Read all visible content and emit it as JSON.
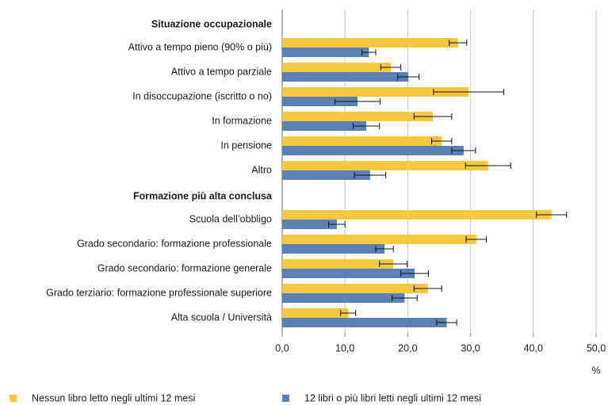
{
  "chart_data": {
    "type": "bar",
    "orientation": "horizontal",
    "categories": [
      "Situazione occupazionale",
      "Attivo a tempo pieno (90% o più)",
      "Attivo a tempo parziale",
      "In disoccupazione (iscritto o no)",
      "In formazione",
      "In pensione",
      "Altro",
      "Formazione più alta conclusa",
      "Scuola dell’obbligo",
      "Grado secondario: formazione professionale",
      "Grado secondario: formazione generale",
      "Grado terziario: formazione professionale superiore",
      "Alta scuola / Università"
    ],
    "series": [
      {
        "name": "Nessun libro letto negli ultimi 12 mesi",
        "color": "#f5c842",
        "values": [
          null,
          28.0,
          17.3,
          29.7,
          24.0,
          25.4,
          32.8,
          null,
          42.9,
          30.9,
          17.7,
          23.2,
          10.5
        ],
        "errors": [
          null,
          1.4,
          1.6,
          5.6,
          3.0,
          1.6,
          3.6,
          null,
          2.4,
          1.6,
          2.2,
          2.2,
          1.2
        ]
      },
      {
        "name": "12 libri o più libri letti negli ultimi 12 mesi",
        "color": "#5b80b4",
        "values": [
          null,
          13.8,
          20.1,
          12.0,
          13.4,
          28.9,
          14.0,
          null,
          8.7,
          16.3,
          21.1,
          19.5,
          26.2
        ],
        "errors": [
          null,
          1.1,
          1.7,
          3.6,
          2.1,
          1.9,
          2.5,
          null,
          1.3,
          1.4,
          2.2,
          2.0,
          1.6
        ]
      }
    ],
    "xlabel": "%",
    "xlim": [
      0,
      50
    ],
    "xticks": [
      {
        "value": 0,
        "label": "0,0"
      },
      {
        "value": 10,
        "label": "10,0"
      },
      {
        "value": 20,
        "label": "20,0"
      },
      {
        "value": 30,
        "label": "30,0"
      },
      {
        "value": 40,
        "label": "40,0"
      },
      {
        "value": 50,
        "label": "50,0"
      }
    ],
    "grid": true
  }
}
